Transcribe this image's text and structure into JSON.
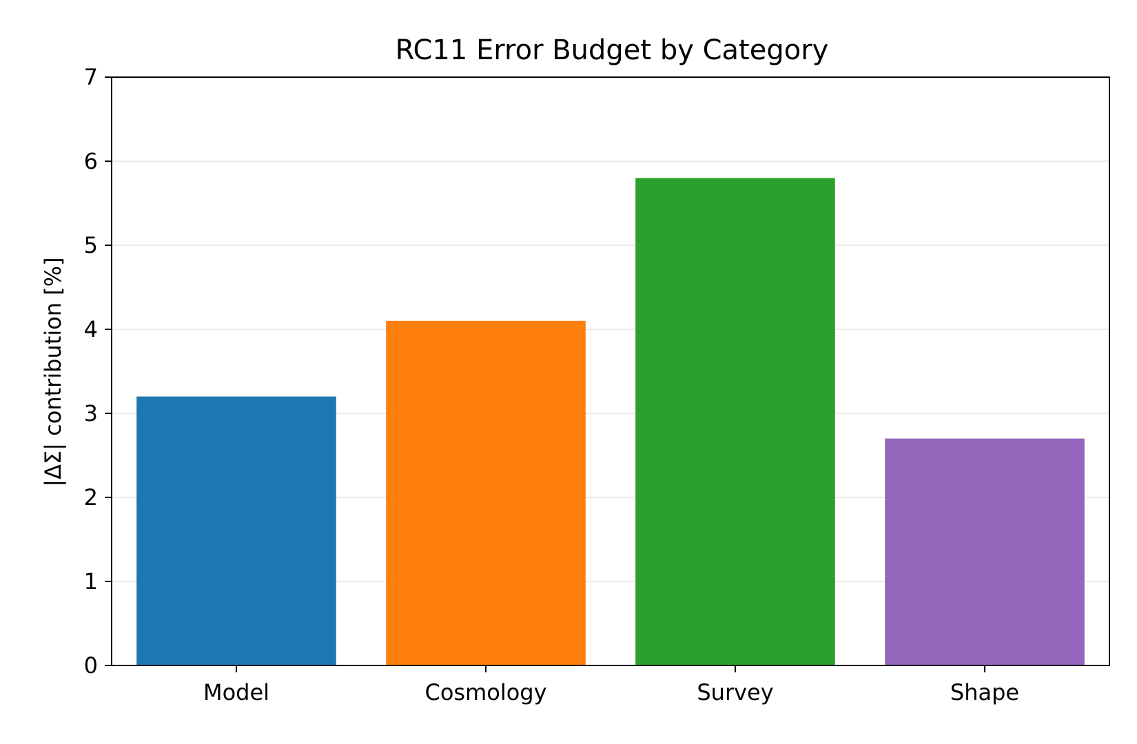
{
  "chart_data": {
    "type": "bar",
    "title": "RC11 Error Budget by Category",
    "xlabel": "",
    "ylabel": "|ΔΣ| contribution [%]",
    "categories": [
      "Model",
      "Cosmology",
      "Survey",
      "Shape"
    ],
    "values": [
      3.2,
      4.1,
      5.8,
      2.7
    ],
    "colors": [
      "#1f77b4",
      "#ff7f0e",
      "#2ca02c",
      "#9467bd"
    ],
    "ylim": [
      0,
      7
    ],
    "yticks": [
      0,
      1,
      2,
      3,
      4,
      5,
      6,
      7
    ],
    "ytick_labels": [
      "0",
      "1",
      "2",
      "3",
      "4",
      "5",
      "6",
      "7"
    ],
    "grid": "y"
  }
}
